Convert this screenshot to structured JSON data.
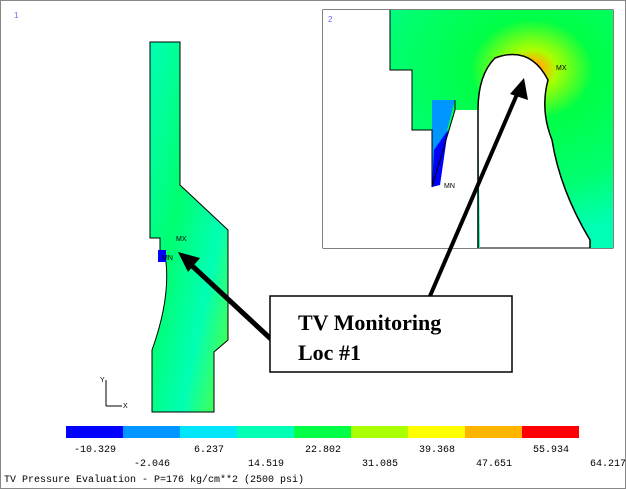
{
  "viewports": [
    {
      "label": "1"
    },
    {
      "label": "2"
    }
  ],
  "markers": {
    "max": "MX",
    "min": "MN",
    "axis_y": "Y",
    "axis_x": "X"
  },
  "callout": {
    "lines": [
      "TV Monitoring",
      "Loc #1"
    ]
  },
  "legend": {
    "values": [
      -10.329,
      -2.046,
      6.237,
      14.519,
      22.802,
      31.085,
      39.368,
      47.651,
      55.934,
      64.217
    ],
    "colors": [
      "#0000ff",
      "#0096ff",
      "#00e6ff",
      "#00ffb4",
      "#00ff46",
      "#aaff00",
      "#ffff00",
      "#ffb400",
      "#ff0000"
    ]
  },
  "footer": "TV Pressure Evaluation - P=176 kg/cm**2 (2500 psi)"
}
